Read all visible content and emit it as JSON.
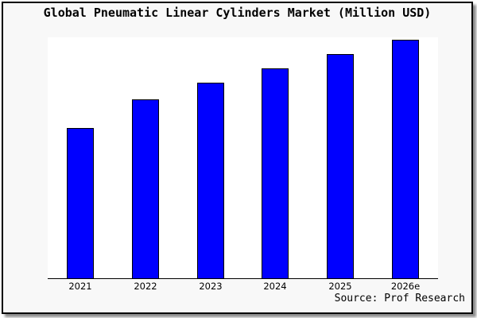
{
  "title": "Global Pneumatic Linear Cylinders Market (Million USD)",
  "source_note": "Source: Prof Research",
  "colors": {
    "bar_fill": "#0000ff",
    "bar_border": "#000000",
    "frame_background": "#f8f8f8",
    "plot_background": "#ffffff",
    "axis_line": "#000000",
    "frame_border": "#000000",
    "text": "#000000"
  },
  "chart_data": {
    "type": "bar",
    "title": "Global Pneumatic Linear Cylinders Market (Million USD)",
    "categories": [
      "2021",
      "2022",
      "2023",
      "2024",
      "2025",
      "2026e"
    ],
    "values": [
      63,
      75,
      82,
      88,
      94,
      100
    ],
    "value_note": "y-axis unlabeled; values are relative index with 2026e = 100",
    "xlabel": "",
    "ylabel": "",
    "ylim": [
      0,
      101
    ],
    "grid": false,
    "legend": false,
    "annotation": "Source: Prof Research"
  }
}
